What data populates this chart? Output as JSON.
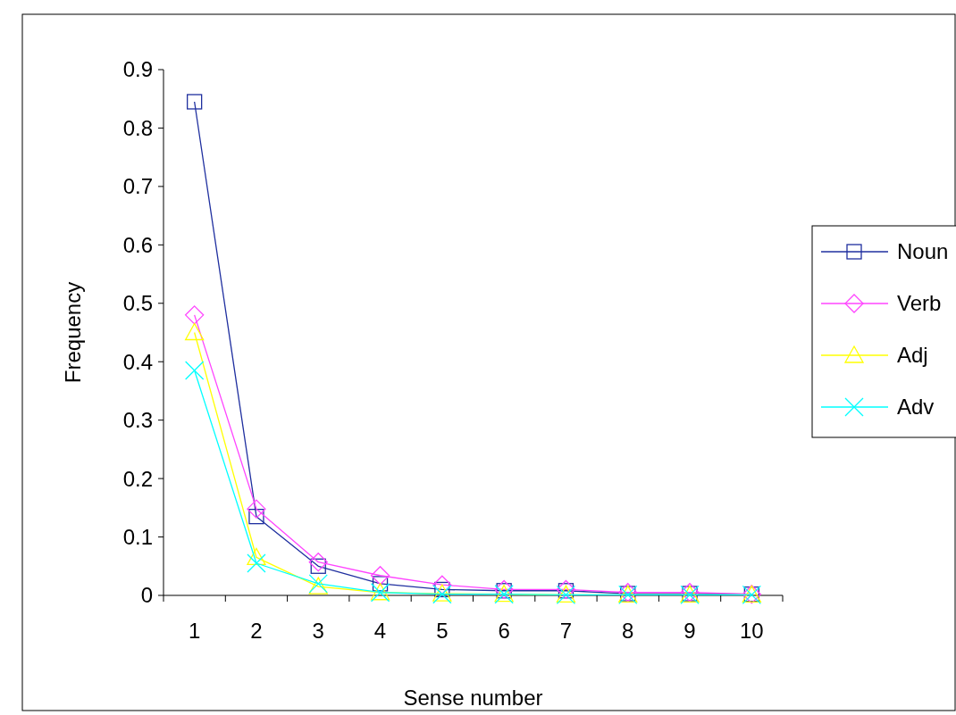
{
  "chart_data": {
    "type": "line",
    "xlabel": "Sense number",
    "ylabel": "Frequency",
    "categories": [
      "1",
      "2",
      "3",
      "4",
      "5",
      "6",
      "7",
      "8",
      "9",
      "10"
    ],
    "ylim": [
      0,
      0.9
    ],
    "yticks": [
      0,
      0.1,
      0.2,
      0.3,
      0.4,
      0.5,
      0.6,
      0.7,
      0.8,
      0.9
    ],
    "legend": "right",
    "grid": false,
    "series": [
      {
        "name": "Noun",
        "color": "#1f2f9f",
        "marker": "square",
        "values": [
          0.845,
          0.135,
          0.05,
          0.02,
          0.01,
          0.008,
          0.008,
          0.003,
          0.003,
          0.002
        ]
      },
      {
        "name": "Verb",
        "color": "#ff44ff",
        "marker": "diamond",
        "values": [
          0.48,
          0.148,
          0.057,
          0.034,
          0.018,
          0.01,
          0.01,
          0.005,
          0.005,
          0.002
        ]
      },
      {
        "name": "Adj",
        "color": "#ffff00",
        "marker": "triangle",
        "values": [
          0.45,
          0.065,
          0.015,
          0.005,
          0.003,
          0.002,
          0.001,
          0.001,
          0.001,
          0.001
        ]
      },
      {
        "name": "Adv",
        "color": "#00ffff",
        "marker": "cross",
        "values": [
          0.385,
          0.055,
          0.02,
          0.005,
          0.002,
          0.002,
          0.001,
          0.001,
          0.001,
          0.001
        ]
      }
    ]
  }
}
